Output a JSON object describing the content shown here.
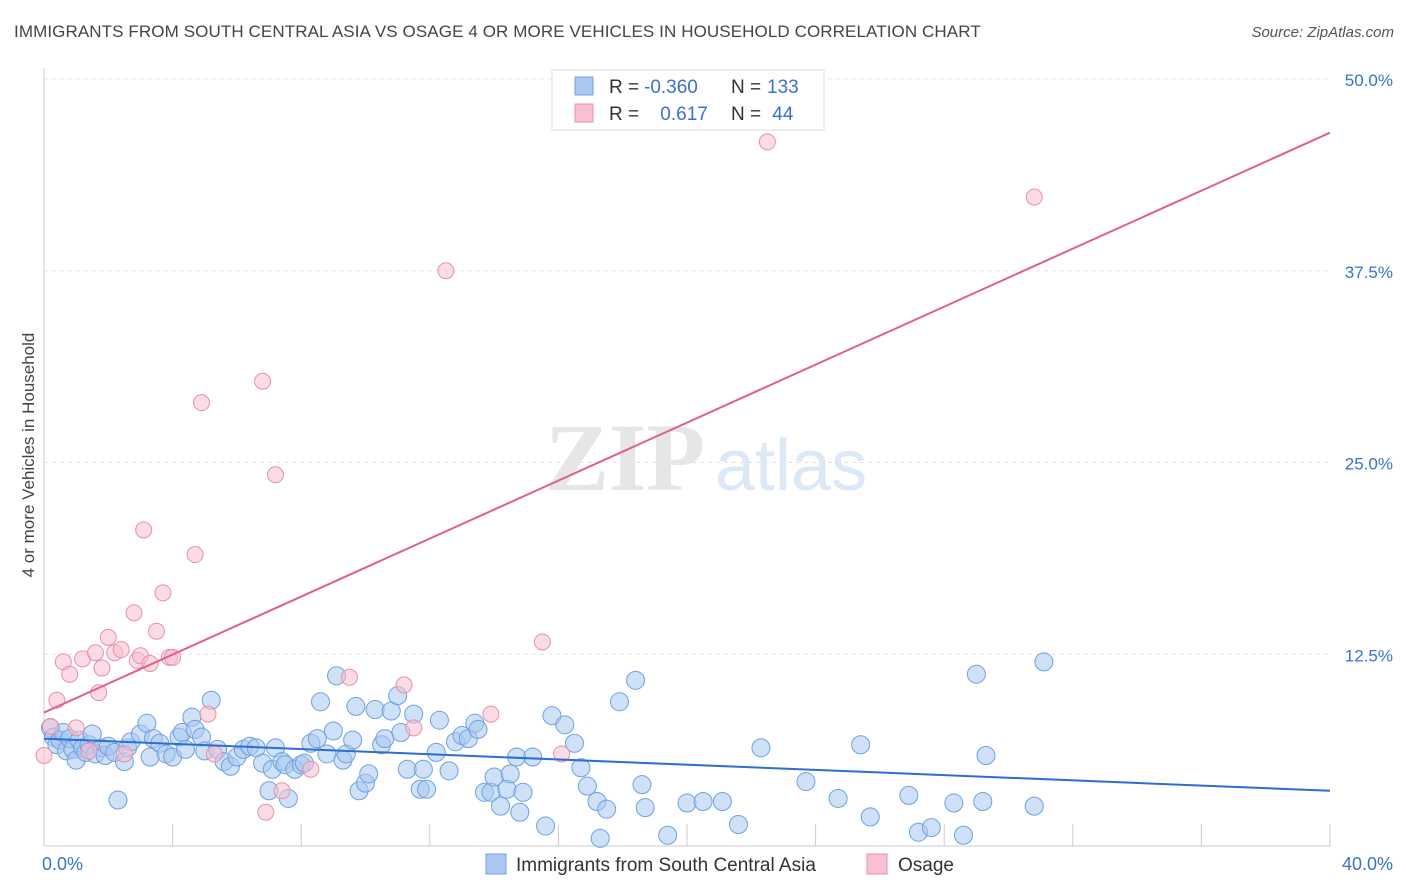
{
  "header": {
    "title": "IMMIGRANTS FROM SOUTH CENTRAL ASIA VS OSAGE 4 OR MORE VEHICLES IN HOUSEHOLD CORRELATION CHART",
    "source": "Source: ZipAtlas.com"
  },
  "watermark": {
    "zip": "ZIP",
    "atlas": "atlas"
  },
  "colors": {
    "blue_fill": "#a8c8f0",
    "blue_stroke": "#6fa0e0",
    "blue_line": "#2b6fd0",
    "pink_fill": "#f8c0d0",
    "pink_stroke": "#e890a8",
    "pink_line": "#e0608a",
    "axis_label": "#3a72c8"
  },
  "stats": {
    "rows": [
      {
        "r_label": "R =",
        "r_value": "-0.360",
        "n_label": "N =",
        "n_value": "133",
        "series": "blue"
      },
      {
        "r_label": "R =",
        "r_value": " 0.617",
        "n_label": "N =",
        "n_value": " 44",
        "series": "pink"
      }
    ]
  },
  "chart_data": {
    "type": "scatter",
    "title": "IMMIGRANTS FROM SOUTH CENTRAL ASIA VS OSAGE 4 OR MORE VEHICLES IN HOUSEHOLD CORRELATION CHART",
    "xlabel": "",
    "ylabel": "4 or more Vehicles in Household",
    "xlim": [
      0,
      40
    ],
    "ylim": [
      0,
      50
    ],
    "x_tick_labels": [
      "0.0%",
      "40.0%"
    ],
    "y_ticks": [
      12.5,
      25.0,
      37.5,
      50.0
    ],
    "y_tick_labels": [
      "12.5%",
      "25.0%",
      "37.5%",
      "50.0%"
    ],
    "grid": true,
    "legend": "bottom-center",
    "series": [
      {
        "name": "Immigrants from South Central Asia",
        "color": "#a8c8f0",
        "trend": {
          "x": [
            0,
            40
          ],
          "y": [
            7.0,
            3.6
          ]
        },
        "points": [
          [
            0.2,
            7.7
          ],
          [
            0.3,
            7.1
          ],
          [
            0.4,
            6.6
          ],
          [
            0.5,
            6.9
          ],
          [
            0.6,
            7.4
          ],
          [
            0.7,
            6.2
          ],
          [
            0.8,
            7.0
          ],
          [
            0.9,
            6.3
          ],
          [
            1.0,
            5.6
          ],
          [
            1.1,
            6.9
          ],
          [
            1.2,
            6.4
          ],
          [
            1.3,
            6.1
          ],
          [
            1.4,
            6.6
          ],
          [
            1.5,
            7.3
          ],
          [
            1.6,
            6.0
          ],
          [
            1.8,
            6.4
          ],
          [
            1.9,
            5.9
          ],
          [
            2.0,
            6.5
          ],
          [
            2.2,
            6.1
          ],
          [
            2.3,
            3.0
          ],
          [
            2.5,
            5.5
          ],
          [
            2.6,
            6.4
          ],
          [
            2.7,
            6.8
          ],
          [
            3.0,
            7.3
          ],
          [
            3.2,
            8.0
          ],
          [
            3.3,
            5.8
          ],
          [
            3.4,
            7.0
          ],
          [
            3.6,
            6.7
          ],
          [
            3.8,
            6.0
          ],
          [
            4.0,
            5.8
          ],
          [
            4.2,
            7.1
          ],
          [
            4.3,
            7.4
          ],
          [
            4.4,
            6.3
          ],
          [
            4.6,
            8.4
          ],
          [
            4.7,
            7.6
          ],
          [
            4.9,
            7.1
          ],
          [
            5.0,
            6.2
          ],
          [
            5.2,
            9.5
          ],
          [
            5.4,
            6.3
          ],
          [
            5.6,
            5.5
          ],
          [
            5.8,
            5.2
          ],
          [
            6.0,
            5.8
          ],
          [
            6.2,
            6.3
          ],
          [
            6.4,
            6.5
          ],
          [
            6.6,
            6.4
          ],
          [
            6.8,
            5.4
          ],
          [
            7.0,
            3.6
          ],
          [
            7.1,
            5.0
          ],
          [
            7.2,
            6.4
          ],
          [
            7.4,
            5.5
          ],
          [
            7.5,
            5.3
          ],
          [
            7.6,
            3.1
          ],
          [
            7.8,
            5.0
          ],
          [
            8.0,
            5.3
          ],
          [
            8.1,
            5.4
          ],
          [
            8.3,
            6.7
          ],
          [
            8.5,
            7.0
          ],
          [
            8.6,
            9.4
          ],
          [
            8.8,
            6.0
          ],
          [
            9.0,
            7.5
          ],
          [
            9.1,
            11.1
          ],
          [
            9.3,
            5.6
          ],
          [
            9.4,
            6.0
          ],
          [
            9.6,
            6.9
          ],
          [
            9.7,
            9.1
          ],
          [
            9.8,
            3.6
          ],
          [
            10.0,
            4.1
          ],
          [
            10.1,
            4.7
          ],
          [
            10.3,
            8.9
          ],
          [
            10.5,
            6.6
          ],
          [
            10.6,
            7.0
          ],
          [
            10.8,
            8.8
          ],
          [
            11.0,
            9.8
          ],
          [
            11.1,
            7.4
          ],
          [
            11.3,
            5.0
          ],
          [
            11.5,
            8.6
          ],
          [
            11.7,
            3.7
          ],
          [
            11.8,
            5.0
          ],
          [
            11.9,
            3.7
          ],
          [
            12.2,
            6.1
          ],
          [
            12.3,
            8.2
          ],
          [
            12.6,
            4.9
          ],
          [
            12.8,
            6.8
          ],
          [
            13.0,
            7.2
          ],
          [
            13.2,
            7.0
          ],
          [
            13.4,
            8.0
          ],
          [
            13.5,
            7.6
          ],
          [
            13.7,
            3.5
          ],
          [
            13.9,
            3.5
          ],
          [
            14.0,
            4.5
          ],
          [
            14.2,
            2.6
          ],
          [
            14.4,
            3.7
          ],
          [
            14.5,
            4.7
          ],
          [
            14.7,
            5.8
          ],
          [
            14.8,
            2.2
          ],
          [
            14.9,
            3.5
          ],
          [
            15.2,
            5.8
          ],
          [
            15.6,
            1.3
          ],
          [
            15.8,
            8.5
          ],
          [
            16.2,
            7.9
          ],
          [
            16.5,
            6.7
          ],
          [
            16.7,
            5.1
          ],
          [
            16.9,
            3.9
          ],
          [
            17.2,
            2.9
          ],
          [
            17.3,
            0.5
          ],
          [
            17.5,
            2.4
          ],
          [
            17.9,
            9.4
          ],
          [
            18.4,
            10.8
          ],
          [
            18.6,
            4.0
          ],
          [
            18.7,
            2.5
          ],
          [
            19.4,
            0.7
          ],
          [
            20.0,
            2.8
          ],
          [
            20.5,
            2.9
          ],
          [
            21.1,
            2.9
          ],
          [
            21.6,
            1.4
          ],
          [
            22.3,
            6.4
          ],
          [
            23.7,
            4.2
          ],
          [
            24.7,
            3.1
          ],
          [
            25.4,
            6.6
          ],
          [
            25.7,
            1.9
          ],
          [
            26.9,
            3.3
          ],
          [
            27.2,
            0.9
          ],
          [
            27.6,
            1.2
          ],
          [
            28.3,
            2.8
          ],
          [
            28.6,
            0.7
          ],
          [
            29.0,
            11.2
          ],
          [
            29.2,
            2.9
          ],
          [
            29.3,
            5.9
          ],
          [
            30.8,
            2.6
          ],
          [
            31.1,
            12.0
          ]
        ]
      },
      {
        "name": "Osage",
        "color": "#f8c0d0",
        "trend": {
          "x": [
            0,
            40
          ],
          "y": [
            8.7,
            46.5
          ]
        },
        "points": [
          [
            0.0,
            5.9
          ],
          [
            0.2,
            7.8
          ],
          [
            0.4,
            9.5
          ],
          [
            0.6,
            12.0
          ],
          [
            0.8,
            11.2
          ],
          [
            1.0,
            7.7
          ],
          [
            1.2,
            12.2
          ],
          [
            1.4,
            6.2
          ],
          [
            1.6,
            12.6
          ],
          [
            1.7,
            10.0
          ],
          [
            1.8,
            11.6
          ],
          [
            2.0,
            13.6
          ],
          [
            2.2,
            12.6
          ],
          [
            2.4,
            12.8
          ],
          [
            2.5,
            6.0
          ],
          [
            2.8,
            15.2
          ],
          [
            2.9,
            12.1
          ],
          [
            3.0,
            12.4
          ],
          [
            3.1,
            20.6
          ],
          [
            3.3,
            11.9
          ],
          [
            3.5,
            14.0
          ],
          [
            3.7,
            16.5
          ],
          [
            3.9,
            12.3
          ],
          [
            4.0,
            12.3
          ],
          [
            4.7,
            19.0
          ],
          [
            4.9,
            28.9
          ],
          [
            5.1,
            8.6
          ],
          [
            5.3,
            6.0
          ],
          [
            6.8,
            30.3
          ],
          [
            6.9,
            2.2
          ],
          [
            7.2,
            24.2
          ],
          [
            7.4,
            3.6
          ],
          [
            8.3,
            5.0
          ],
          [
            9.5,
            11.0
          ],
          [
            11.2,
            10.5
          ],
          [
            11.5,
            7.7
          ],
          [
            12.5,
            37.5
          ],
          [
            13.9,
            8.6
          ],
          [
            15.5,
            13.3
          ],
          [
            16.1,
            6.0
          ],
          [
            22.5,
            45.9
          ],
          [
            30.8,
            42.3
          ]
        ]
      }
    ]
  },
  "legend_items": [
    {
      "label": "Immigrants from South Central Asia",
      "series": "blue"
    },
    {
      "label": "Osage",
      "series": "pink"
    }
  ]
}
